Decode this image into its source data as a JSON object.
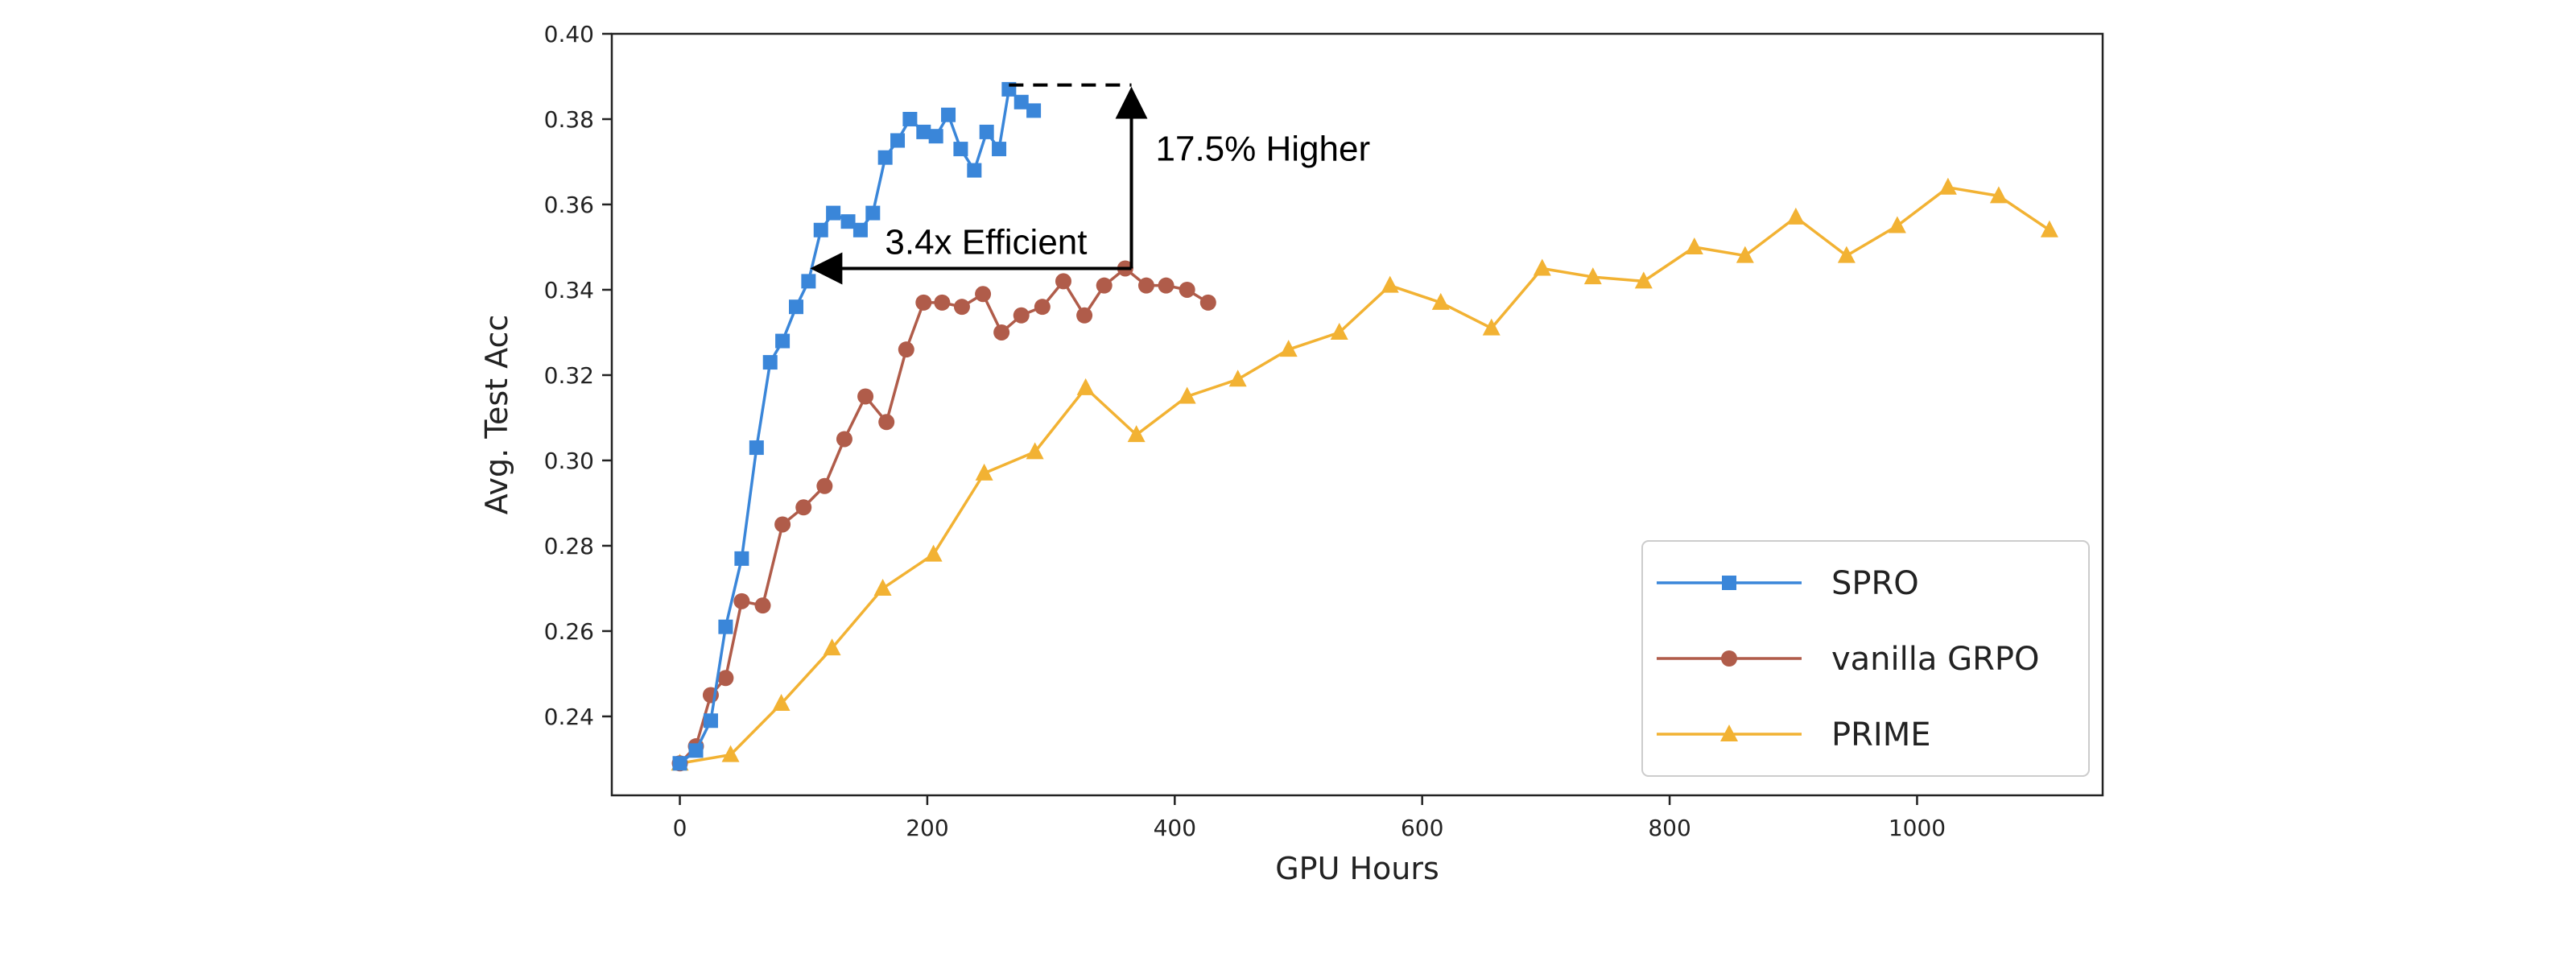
{
  "chart_data": {
    "type": "line",
    "xlabel": "GPU Hours",
    "ylabel": "Avg. Test Acc",
    "xlim": [
      -55,
      1150
    ],
    "ylim": [
      0.2215,
      0.4
    ],
    "xticks": [
      0,
      200,
      400,
      600,
      800,
      1000
    ],
    "yticks": [
      0.24,
      0.26,
      0.28,
      0.3,
      0.32,
      0.34,
      0.36,
      0.38,
      0.4
    ],
    "grid": false,
    "legend_position": "bottom-right",
    "series": [
      {
        "name": "SPRO",
        "color": "#3a86d9",
        "marker": "square",
        "x": [
          0,
          13,
          25,
          37,
          50,
          62,
          73,
          83,
          94,
          104,
          114,
          124,
          136,
          146,
          156,
          166,
          176,
          186,
          197,
          207,
          217,
          227,
          238,
          248,
          258,
          266,
          276,
          286
        ],
        "y": [
          0.229,
          0.232,
          0.239,
          0.261,
          0.277,
          0.303,
          0.323,
          0.328,
          0.336,
          0.342,
          0.354,
          0.358,
          0.356,
          0.354,
          0.358,
          0.371,
          0.375,
          0.38,
          0.377,
          0.376,
          0.381,
          0.373,
          0.368,
          0.377,
          0.373,
          0.387,
          0.384,
          0.382
        ]
      },
      {
        "name": "vanilla GRPO",
        "color": "#b05c4a",
        "marker": "circle",
        "x": [
          0,
          13,
          25,
          37,
          50,
          67,
          83,
          100,
          117,
          133,
          150,
          167,
          183,
          197,
          212,
          228,
          245,
          260,
          276,
          293,
          310,
          327,
          343,
          360,
          377,
          393,
          410,
          427
        ],
        "y": [
          0.229,
          0.233,
          0.245,
          0.249,
          0.267,
          0.266,
          0.285,
          0.289,
          0.294,
          0.305,
          0.315,
          0.309,
          0.326,
          0.337,
          0.337,
          0.336,
          0.339,
          0.33,
          0.334,
          0.336,
          0.342,
          0.334,
          0.341,
          0.345,
          0.341,
          0.341,
          0.34,
          0.337
        ]
      },
      {
        "name": "PRIME",
        "color": "#f2b233",
        "marker": "triangle",
        "x": [
          0,
          41,
          82,
          123,
          164,
          205,
          246,
          287,
          328,
          369,
          410,
          451,
          492,
          533,
          574,
          615,
          656,
          697,
          738,
          779,
          820,
          861,
          902,
          943,
          984,
          1025,
          1066,
          1107
        ],
        "y": [
          0.229,
          0.231,
          0.243,
          0.256,
          0.27,
          0.278,
          0.297,
          0.302,
          0.317,
          0.306,
          0.315,
          0.319,
          0.326,
          0.33,
          0.341,
          0.337,
          0.331,
          0.345,
          0.343,
          0.342,
          0.35,
          0.348,
          0.357,
          0.348,
          0.355,
          0.364,
          0.362,
          0.354
        ]
      }
    ],
    "annotations": [
      {
        "text": "3.4x Efficient",
        "type": "horizontal-arrow",
        "x_from": 365,
        "x_to": 104,
        "y": 0.345
      },
      {
        "text": "17.5% Higher",
        "type": "vertical-arrow",
        "x": 365,
        "y_from": 0.345,
        "y_to": 0.388,
        "dashed_from_x": 266
      }
    ]
  }
}
